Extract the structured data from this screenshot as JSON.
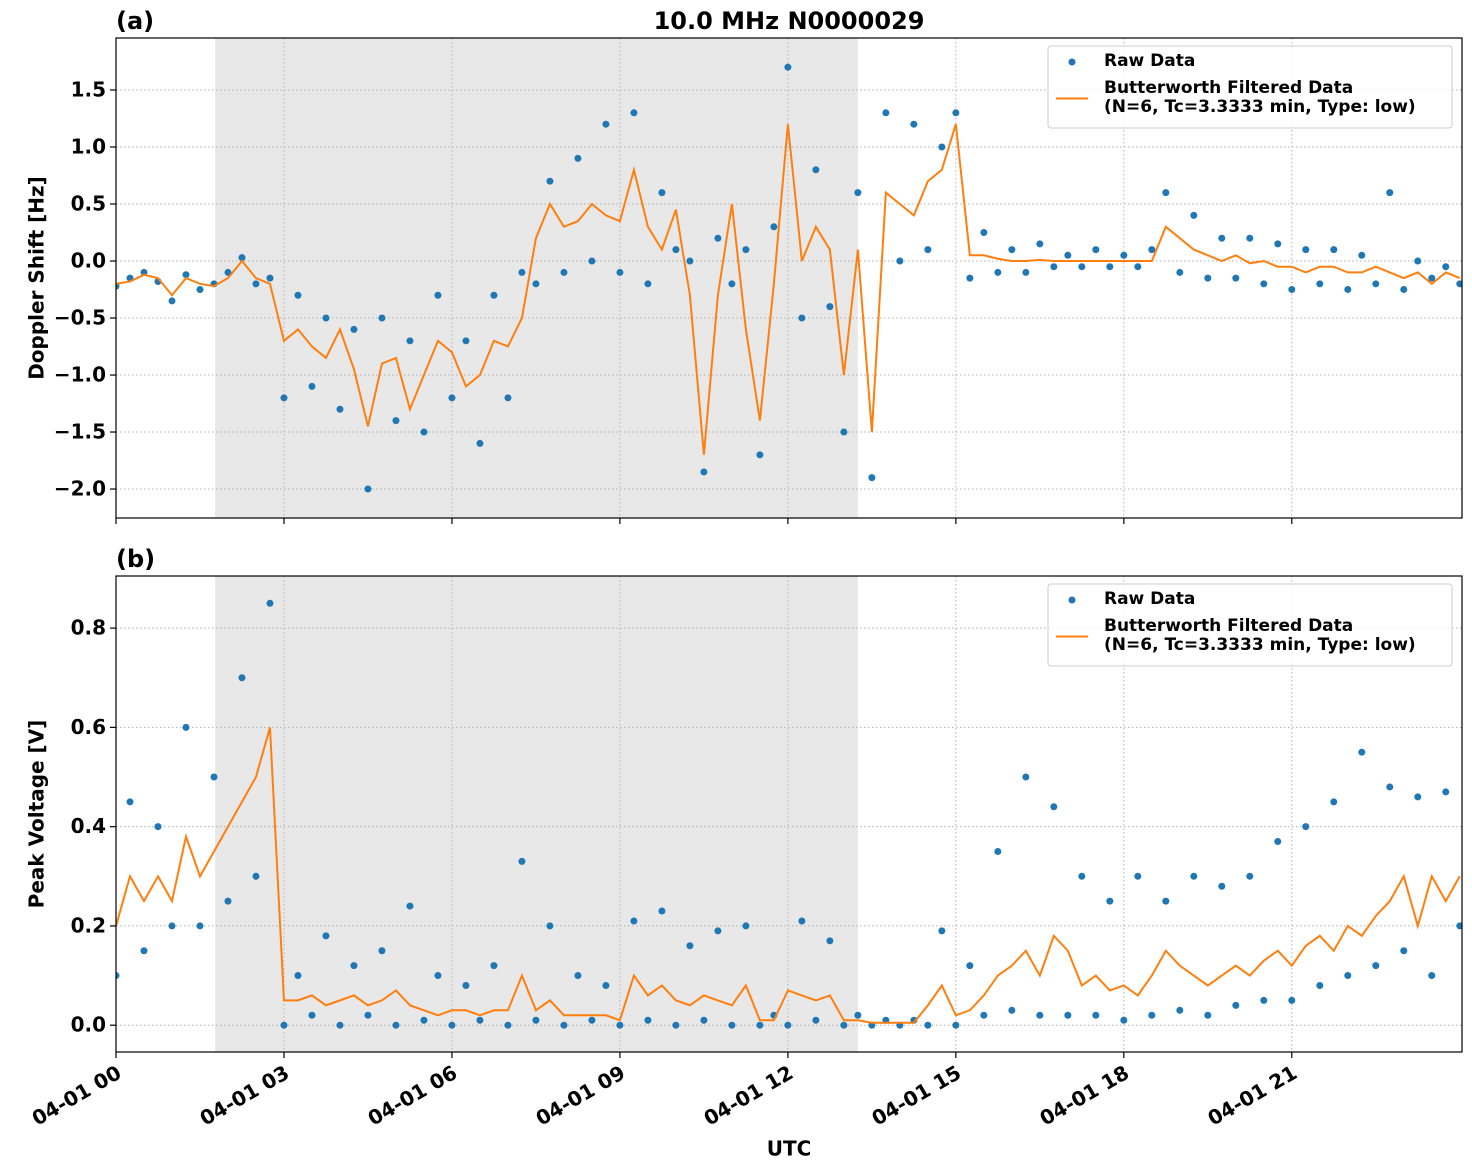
{
  "chart_data": [
    {
      "type": "line",
      "panel_label": "(a)",
      "title": "10.0 MHz N0000029",
      "ylabel": "Doppler Shift [Hz]",
      "x": [
        0,
        0.25,
        0.5,
        0.75,
        1,
        1.25,
        1.5,
        1.75,
        2,
        2.25,
        2.5,
        2.75,
        3,
        3.25,
        3.5,
        3.75,
        4,
        4.25,
        4.5,
        4.75,
        5,
        5.25,
        5.5,
        5.75,
        6,
        6.25,
        6.5,
        6.75,
        7,
        7.25,
        7.5,
        7.75,
        8,
        8.25,
        8.5,
        8.75,
        9,
        9.25,
        9.5,
        9.75,
        10,
        10.25,
        10.5,
        10.75,
        11,
        11.25,
        11.5,
        11.75,
        12,
        12.25,
        12.5,
        12.75,
        13,
        13.25,
        13.5,
        13.75,
        14,
        14.25,
        14.5,
        14.75,
        15,
        15.25,
        15.5,
        15.75,
        16,
        16.25,
        16.5,
        16.75,
        17,
        17.25,
        17.5,
        17.75,
        18,
        18.25,
        18.5,
        18.75,
        19,
        19.25,
        19.5,
        19.75,
        20,
        20.25,
        20.5,
        20.75,
        21,
        21.25,
        21.5,
        21.75,
        22,
        22.25,
        22.5,
        22.75,
        23,
        23.25,
        23.5,
        23.75,
        24
      ],
      "xlim": [
        0,
        24.04
      ],
      "xticks": [
        0,
        3,
        6,
        9,
        12,
        15,
        18,
        21
      ],
      "ylim": [
        -2.254,
        1.956
      ],
      "yticks": [
        {
          "value": -2,
          "label": "−2.0"
        },
        {
          "value": -1.5,
          "label": "−1.5"
        },
        {
          "value": -1,
          "label": "−1.0"
        },
        {
          "value": -0.5,
          "label": "−0.5"
        },
        {
          "value": 0,
          "label": "0.0"
        },
        0.5,
        {
          "value": 1,
          "label": "1.0"
        },
        1.5
      ],
      "grid": true,
      "shade": [
        1.77,
        13.25
      ],
      "shade_color": "#e8e8e8",
      "legend": "upper right",
      "series": [
        {
          "name": "Raw Data",
          "kind": "scatter",
          "color": "#1f77b4",
          "values": [
            -0.22,
            -0.15,
            -0.1,
            -0.18,
            -0.35,
            -0.12,
            -0.25,
            -0.2,
            -0.1,
            0.03,
            -0.2,
            -0.15,
            -1.2,
            -0.3,
            -1.1,
            -0.5,
            -1.3,
            -0.6,
            -2.0,
            -0.5,
            -1.4,
            -0.7,
            -1.5,
            -0.3,
            -1.2,
            -0.7,
            -1.6,
            -0.3,
            -1.2,
            -0.1,
            -0.2,
            0.7,
            -0.1,
            0.9,
            0.0,
            1.2,
            -0.1,
            1.3,
            -0.2,
            0.6,
            0.1,
            0.0,
            -1.85,
            0.2,
            -0.2,
            0.1,
            -1.7,
            0.3,
            1.7,
            -0.5,
            0.8,
            -0.4,
            -1.5,
            0.6,
            -1.9,
            1.3,
            0.0,
            1.2,
            0.1,
            1.0,
            1.3,
            -0.15,
            0.25,
            -0.1,
            0.1,
            -0.1,
            0.15,
            -0.05,
            0.05,
            -0.05,
            0.1,
            -0.05,
            0.05,
            -0.05,
            0.1,
            0.6,
            -0.1,
            0.4,
            -0.15,
            0.2,
            -0.15,
            0.2,
            -0.2,
            0.15,
            -0.25,
            0.1,
            -0.2,
            0.1,
            -0.25,
            0.05,
            -0.2,
            0.6,
            -0.25,
            0.0,
            -0.15,
            -0.05,
            -0.2
          ]
        },
        {
          "name": "Butterworth Filtered Data\n(N=6, Tc=3.3333 min, Type: low)",
          "kind": "line",
          "color": "#ff7f0e",
          "values": [
            -0.2,
            -0.18,
            -0.12,
            -0.15,
            -0.3,
            -0.15,
            -0.2,
            -0.22,
            -0.15,
            0.0,
            -0.15,
            -0.2,
            -0.7,
            -0.6,
            -0.75,
            -0.85,
            -0.6,
            -0.95,
            -1.45,
            -0.9,
            -0.85,
            -1.3,
            -1.0,
            -0.7,
            -0.8,
            -1.1,
            -1.0,
            -0.7,
            -0.75,
            -0.5,
            0.2,
            0.5,
            0.3,
            0.35,
            0.5,
            0.4,
            0.35,
            0.8,
            0.3,
            0.1,
            0.45,
            -0.3,
            -1.7,
            -0.3,
            0.5,
            -0.6,
            -1.4,
            -0.2,
            1.2,
            0.0,
            0.3,
            0.1,
            -1.0,
            0.1,
            -1.5,
            0.6,
            0.5,
            0.4,
            0.7,
            0.8,
            1.2,
            0.05,
            0.05,
            0.02,
            0.0,
            0.0,
            0.01,
            0,
            0,
            0,
            0,
            0,
            0,
            0,
            0,
            0.3,
            0.2,
            0.1,
            0.05,
            0,
            0.05,
            -0.02,
            0,
            -0.05,
            -0.05,
            -0.1,
            -0.05,
            -0.05,
            -0.1,
            -0.1,
            -0.05,
            -0.1,
            -0.15,
            -0.1,
            -0.2,
            -0.1,
            -0.15
          ]
        }
      ]
    },
    {
      "type": "line",
      "panel_label": "(b)",
      "ylabel": "Peak Voltage [V]",
      "xlabel": "UTC",
      "x": [
        0,
        0.25,
        0.5,
        0.75,
        1,
        1.25,
        1.5,
        1.75,
        2,
        2.25,
        2.5,
        2.75,
        3,
        3.25,
        3.5,
        3.75,
        4,
        4.25,
        4.5,
        4.75,
        5,
        5.25,
        5.5,
        5.75,
        6,
        6.25,
        6.5,
        6.75,
        7,
        7.25,
        7.5,
        7.75,
        8,
        8.25,
        8.5,
        8.75,
        9,
        9.25,
        9.5,
        9.75,
        10,
        10.25,
        10.5,
        10.75,
        11,
        11.25,
        11.5,
        11.75,
        12,
        12.25,
        12.5,
        12.75,
        13,
        13.25,
        13.5,
        13.75,
        14,
        14.25,
        14.5,
        14.75,
        15,
        15.25,
        15.5,
        15.75,
        16,
        16.25,
        16.5,
        16.75,
        17,
        17.25,
        17.5,
        17.75,
        18,
        18.25,
        18.5,
        18.75,
        19,
        19.25,
        19.5,
        19.75,
        20,
        20.25,
        20.5,
        20.75,
        21,
        21.25,
        21.5,
        21.75,
        22,
        22.25,
        22.5,
        22.75,
        23,
        23.25,
        23.5,
        23.75,
        24
      ],
      "xlim": [
        0,
        24.04
      ],
      "xticks": [
        {
          "value": 0,
          "label": "04-01 00"
        },
        {
          "value": 3,
          "label": "04-01 03"
        },
        {
          "value": 6,
          "label": "04-01 06"
        },
        {
          "value": 9,
          "label": "04-01 09"
        },
        {
          "value": 12,
          "label": "04-01 12"
        },
        {
          "value": 15,
          "label": "04-01 15"
        },
        {
          "value": 18,
          "label": "04-01 18"
        },
        {
          "value": 21,
          "label": "04-01 21"
        }
      ],
      "ylim": [
        -0.054,
        0.905
      ],
      "yticks": [
        {
          "value": 0,
          "label": "0.0"
        },
        0.2,
        0.4,
        0.6,
        0.8
      ],
      "grid": true,
      "shade": [
        1.77,
        13.25
      ],
      "shade_color": "#e8e8e8",
      "legend": "upper right",
      "series": [
        {
          "name": "Raw Data",
          "kind": "scatter",
          "color": "#1f77b4",
          "values": [
            0.1,
            0.45,
            0.15,
            0.4,
            0.2,
            0.6,
            0.2,
            0.5,
            0.25,
            0.7,
            0.3,
            0.85,
            0.0,
            0.1,
            0.02,
            0.18,
            0.0,
            0.12,
            0.02,
            0.15,
            0.0,
            0.24,
            0.01,
            0.1,
            0.0,
            0.08,
            0.01,
            0.12,
            0.0,
            0.33,
            0.01,
            0.2,
            0.0,
            0.1,
            0.01,
            0.08,
            0.0,
            0.21,
            0.01,
            0.23,
            0.0,
            0.16,
            0.01,
            0.19,
            0.0,
            0.2,
            0.0,
            0.02,
            0.0,
            0.21,
            0.01,
            0.17,
            0.0,
            0.02,
            0.0,
            0.01,
            0.0,
            0.01,
            0.0,
            0.19,
            0.0,
            0.12,
            0.02,
            0.35,
            0.03,
            0.5,
            0.02,
            0.44,
            0.02,
            0.3,
            0.02,
            0.25,
            0.01,
            0.3,
            0.02,
            0.25,
            0.03,
            0.3,
            0.02,
            0.28,
            0.04,
            0.3,
            0.05,
            0.37,
            0.05,
            0.4,
            0.08,
            0.45,
            0.1,
            0.55,
            0.12,
            0.48,
            0.15,
            0.46,
            0.1,
            0.47,
            0.2
          ]
        },
        {
          "name": "Butterworth Filtered Data\n(N=6, Tc=3.3333 min, Type: low)",
          "kind": "line",
          "color": "#ff7f0e",
          "values": [
            0.2,
            0.3,
            0.25,
            0.3,
            0.25,
            0.38,
            0.3,
            0.35,
            0.4,
            0.45,
            0.5,
            0.6,
            0.05,
            0.05,
            0.06,
            0.04,
            0.05,
            0.06,
            0.04,
            0.05,
            0.07,
            0.04,
            0.03,
            0.02,
            0.03,
            0.03,
            0.02,
            0.03,
            0.03,
            0.1,
            0.03,
            0.05,
            0.02,
            0.02,
            0.02,
            0.02,
            0.01,
            0.1,
            0.06,
            0.08,
            0.05,
            0.04,
            0.06,
            0.05,
            0.04,
            0.08,
            0.01,
            0.01,
            0.07,
            0.06,
            0.05,
            0.06,
            0.01,
            0.01,
            0.005,
            0.005,
            0.005,
            0.005,
            0.04,
            0.08,
            0.02,
            0.03,
            0.06,
            0.1,
            0.12,
            0.15,
            0.1,
            0.18,
            0.15,
            0.08,
            0.1,
            0.07,
            0.08,
            0.06,
            0.1,
            0.15,
            0.12,
            0.1,
            0.08,
            0.1,
            0.12,
            0.1,
            0.13,
            0.15,
            0.12,
            0.16,
            0.18,
            0.15,
            0.2,
            0.18,
            0.22,
            0.25,
            0.3,
            0.2,
            0.3,
            0.25,
            0.3
          ]
        }
      ]
    }
  ]
}
